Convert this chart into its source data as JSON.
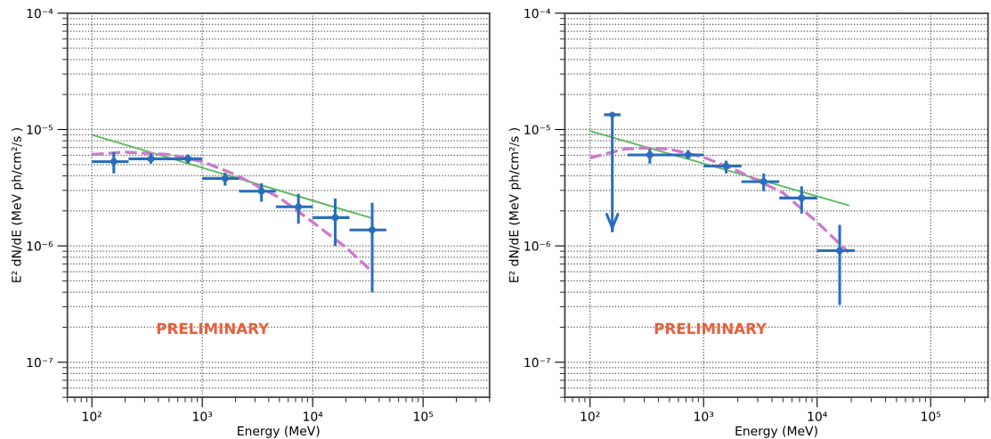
{
  "chart_data": [
    {
      "type": "scatter",
      "xlabel": "Energy (MeV)",
      "ylabel": "E² dN/dE (MeV ph/cm²/s )",
      "log": "xy",
      "grid": true,
      "legend": false,
      "xlim": [
        60,
        400000
      ],
      "ylim": [
        5e-08,
        0.0001
      ],
      "xticks": [
        {
          "value": 100,
          "label": "10²"
        },
        {
          "value": 1000,
          "label": "10³"
        },
        {
          "value": 10000,
          "label": "10⁴"
        },
        {
          "value": 100000,
          "label": "10⁵"
        }
      ],
      "yticks": [
        {
          "value": 1e-07,
          "label": "10⁻⁷"
        },
        {
          "value": 1e-06,
          "label": "10⁻⁶"
        },
        {
          "value": 1e-05,
          "label": "10⁻⁵"
        },
        {
          "value": 0.0001,
          "label": "10⁻⁴"
        }
      ],
      "annotations": [
        "PRELIMINARY"
      ],
      "series": [
        {
          "type": "scatter",
          "color": "#2a6ebb",
          "marker": "circle",
          "x": [
            158,
            343,
            743,
            1610,
            3435,
            7430,
            16000,
            34600
          ],
          "values": [
            5.3e-06,
            5.6e-06,
            5.6e-06,
            3.8e-06,
            2.95e-06,
            2.17e-06,
            1.75e-06,
            1.37e-06
          ],
          "errors": [
            [
              4.2e-06,
              6.4e-06
            ],
            [
              5.1e-06,
              6.2e-06
            ],
            [
              5.1e-06,
              6.1e-06
            ],
            [
              3.3e-06,
              4.25e-06
            ],
            [
              2.4e-06,
              3.45e-06
            ],
            [
              1.55e-06,
              2.8e-06
            ],
            [
              1e-06,
              2.55e-06
            ],
            [
              4e-07,
              2.35e-06
            ]
          ],
          "xerrors": [
            [
              100,
              215
            ],
            [
              215,
              464
            ],
            [
              464,
              1000
            ],
            [
              1000,
              2154
            ],
            [
              2154,
              4642
            ],
            [
              4642,
              10000
            ],
            [
              10000,
              21544
            ],
            [
              21544,
              46416
            ]
          ]
        },
        {
          "type": "line",
          "color": "#5cb85c",
          "line_style": "solid",
          "x": [
            100,
            1000,
            10000,
            34600
          ],
          "values": [
            9e-06,
            4.7e-06,
            2.45e-06,
            1.73e-06
          ]
        },
        {
          "type": "line",
          "color": "#cc7acc",
          "line_style": "dashed",
          "x": [
            100,
            200,
            500,
            1000,
            2000,
            5000,
            10000,
            20000,
            34600
          ],
          "values": [
            6.1e-06,
            6.4e-06,
            6.1e-06,
            5.3e-06,
            4.1e-06,
            2.6e-06,
            1.6e-06,
            9.7e-07,
            6e-07
          ]
        }
      ]
    },
    {
      "type": "scatter",
      "xlabel": "Energy (MeV)",
      "ylabel": "E² dN/dE (MeV ph/cm²/s )",
      "log": "xy",
      "grid": true,
      "legend": false,
      "xlim": [
        60,
        320000
      ],
      "ylim": [
        5e-08,
        0.0001
      ],
      "xticks": [
        {
          "value": 100,
          "label": "10²"
        },
        {
          "value": 1000,
          "label": "10³"
        },
        {
          "value": 10000,
          "label": "10⁴"
        },
        {
          "value": 100000,
          "label": "10⁵"
        }
      ],
      "yticks": [
        {
          "value": 1e-07,
          "label": "10⁻⁷"
        },
        {
          "value": 1e-06,
          "label": "10⁻⁶"
        },
        {
          "value": 1e-05,
          "label": "10⁻⁵"
        },
        {
          "value": 0.0001,
          "label": "10⁻⁴"
        }
      ],
      "annotations": [
        "PRELIMINARY"
      ],
      "series": [
        {
          "type": "scatter",
          "color": "#2a6ebb",
          "marker": "none",
          "x": [
            157
          ],
          "values": [
            1.34e-05
          ],
          "errors": [
            [
              1.33e-06,
              1.34e-05
            ]
          ]
        },
        {
          "type": "scatter",
          "color": "#2a6ebb",
          "marker": "circle",
          "x": [
            336,
            730,
            1580,
            3380,
            7300,
            15800
          ],
          "values": [
            6.05e-06,
            6.05e-06,
            4.85e-06,
            3.57e-06,
            2.58e-06,
            9.1e-07
          ],
          "errors": [
            [
              5.1e-06,
              6.8e-06
            ],
            [
              5.6e-06,
              6.65e-06
            ],
            [
              4.2e-06,
              5.4e-06
            ],
            [
              2.95e-06,
              4.2e-06
            ],
            [
              1.9e-06,
              3.25e-06
            ],
            [
              3.1e-07,
              1.52e-06
            ]
          ],
          "xerrors": [
            [
              215,
              464
            ],
            [
              464,
              1000
            ],
            [
              1000,
              2154
            ],
            [
              2154,
              4642
            ],
            [
              4642,
              10000
            ],
            [
              10000,
              21544
            ]
          ]
        },
        {
          "type": "line",
          "color": "#5cb85c",
          "line_style": "solid",
          "x": [
            100,
            1000,
            10000,
            18900
          ],
          "values": [
            9.7e-06,
            5.1e-06,
            2.67e-06,
            2.23e-06
          ]
        },
        {
          "type": "line",
          "color": "#cc7acc",
          "line_style": "dashed",
          "x": [
            100,
            200,
            300,
            500,
            1000,
            2000,
            5000,
            10000,
            18900
          ],
          "values": [
            5.7e-06,
            6.8e-06,
            6.95e-06,
            6.8e-06,
            5.8e-06,
            4.4e-06,
            2.86e-06,
            1.6e-06,
            8.8e-07
          ]
        }
      ]
    }
  ]
}
